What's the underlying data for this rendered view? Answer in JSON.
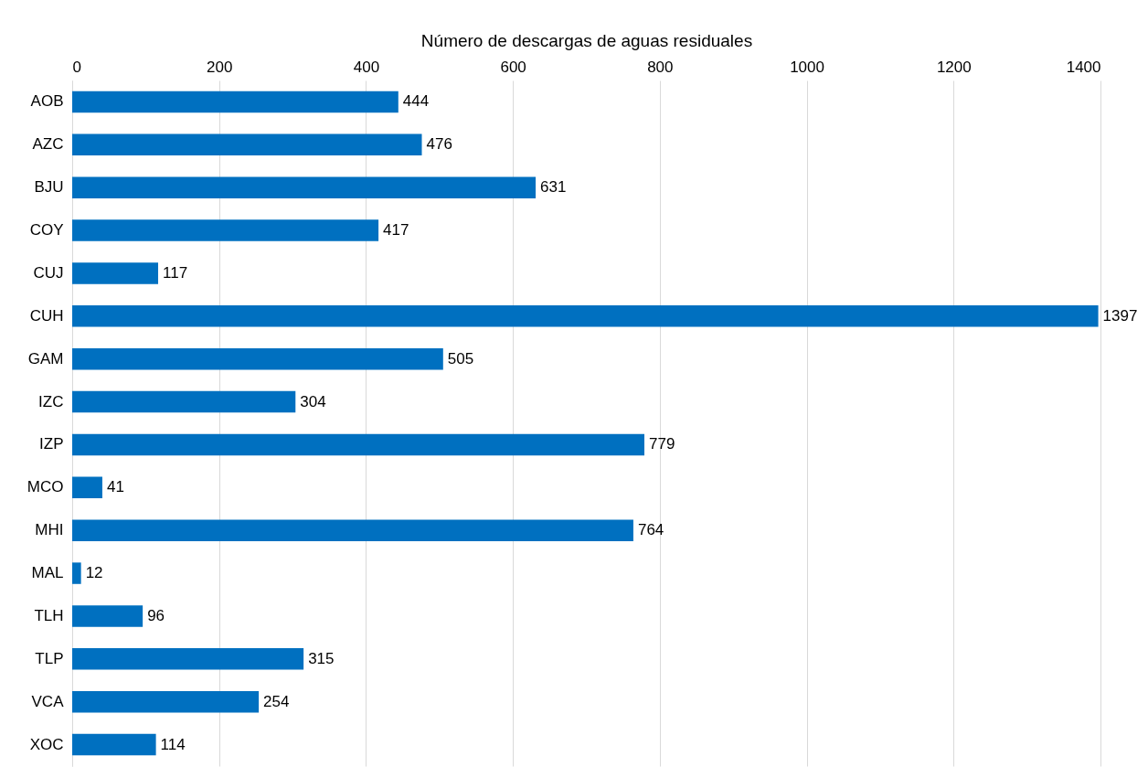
{
  "chart_data": {
    "type": "bar",
    "orientation": "horizontal",
    "xlabel": "Número de descargas de aguas residuales",
    "categories": [
      "AOB",
      "AZC",
      "BJU",
      "COY",
      "CUJ",
      "CUH",
      "GAM",
      "IZC",
      "IZP",
      "MCO",
      "MHI",
      "MAL",
      "TLH",
      "TLP",
      "VCA",
      "XOC"
    ],
    "values": [
      444,
      476,
      631,
      417,
      117,
      1397,
      505,
      304,
      779,
      41,
      764,
      12,
      96,
      315,
      254,
      114
    ],
    "color": "#0070c0",
    "xlim": [
      0,
      1400
    ],
    "xticks": [
      0,
      200,
      400,
      600,
      800,
      1000,
      1200,
      1400
    ],
    "grid": "x",
    "data_labels": true
  }
}
